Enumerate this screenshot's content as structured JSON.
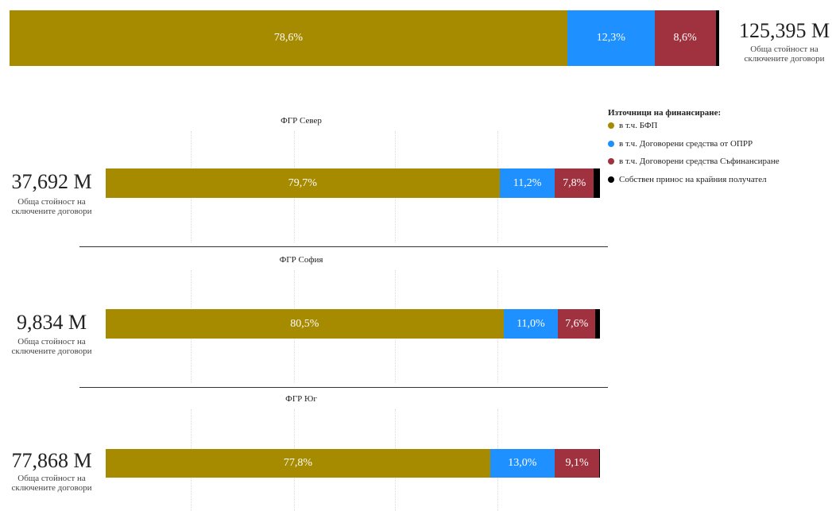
{
  "legend": {
    "title": "Източници на финансиране:",
    "items": [
      {
        "name": "в т.ч. БФП",
        "color": "#a68a00"
      },
      {
        "name": "в т.ч. Договорени средства от ОПРР",
        "color": "#1e90ff"
      },
      {
        "name": "в т.ч. Договорени средства Съфинансиране",
        "color": "#a0323f"
      },
      {
        "name": "Собствен принос на крайния получател",
        "color": "#000000"
      }
    ]
  },
  "chart_data": [
    {
      "type": "stacked-bar",
      "total_label": "125,395 M",
      "caption": "Обща стойност на сключените договори",
      "xlim": [
        0,
        100
      ],
      "values": [
        78.6,
        12.3,
        8.6,
        0.5
      ],
      "value_labels": [
        "78,6%",
        "12,3%",
        "8,6%",
        null
      ]
    },
    {
      "type": "stacked-bar",
      "title": "ФГР Север",
      "total_label": "37,692 M",
      "caption": "Обща стойност на сключените договори",
      "xlim": [
        0,
        100
      ],
      "values": [
        79.7,
        11.2,
        7.8,
        1.3
      ],
      "value_labels": [
        "79,7%",
        "11,2%",
        "7,8%",
        null
      ]
    },
    {
      "type": "stacked-bar",
      "title": "ФГР София",
      "total_label": "9,834 M",
      "caption": "Обща стойност на сключените договори",
      "xlim": [
        0,
        100
      ],
      "values": [
        80.5,
        11.0,
        7.6,
        0.9
      ],
      "value_labels": [
        "80,5%",
        "11,0%",
        "7,6%",
        null
      ]
    },
    {
      "type": "stacked-bar",
      "title": "ФГР Юг",
      "total_label": "77,868 M",
      "caption": "Обща стойност на сключените договори",
      "xlim": [
        0,
        100
      ],
      "values": [
        77.8,
        13.0,
        9.1,
        0.1
      ],
      "value_labels": [
        "77,8%",
        "13,0%",
        "9,1%",
        null
      ]
    }
  ]
}
